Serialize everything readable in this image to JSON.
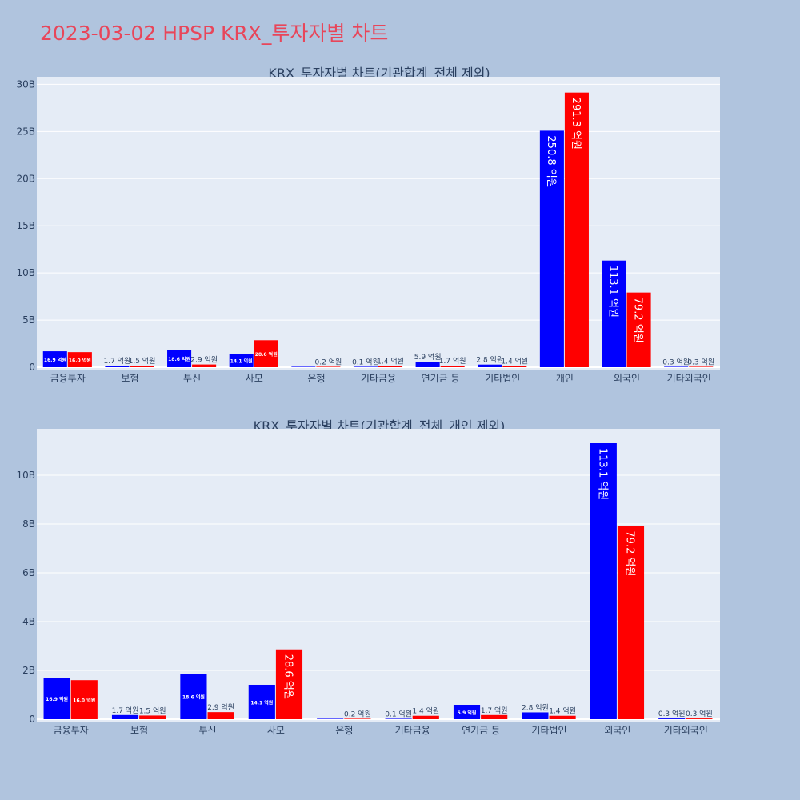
{
  "page_title": "2023-03-02 HPSP KRX_투자자별 차트",
  "colors": {
    "buy": "#0000ff",
    "sell": "#ff0000",
    "plot_bg": "#e5ecf6",
    "page_bg": "#b0c4de",
    "title": "#e8465a"
  },
  "chart_data": [
    {
      "type": "bar",
      "title": "KRX_투자자별 차트(기관합계_전체 제외)",
      "categories": [
        "금융투자",
        "보험",
        "투신",
        "사모",
        "은행",
        "기타금융",
        "연기금 등",
        "기타법인",
        "개인",
        "외국인",
        "기타외국인"
      ],
      "series": [
        {
          "values": [
            1.69,
            0.17,
            1.86,
            1.41,
            0.0,
            0.01,
            0.59,
            0.28,
            25.08,
            11.31,
            0.03
          ],
          "labels": [
            "16.9 억원",
            "1.7 억원",
            "18.6 억원",
            "14.1 억원",
            "",
            "0.1 억원",
            "5.9 억원",
            "2.8 억원",
            "250.8 억원",
            "113.1 억원",
            "0.3 억원"
          ]
        },
        {
          "values": [
            1.6,
            0.15,
            0.29,
            2.86,
            0.02,
            0.14,
            0.17,
            0.14,
            29.13,
            7.92,
            0.03
          ],
          "labels": [
            "16.0 억원",
            "1.5 억원",
            "2.9 억원",
            "28.6 억원",
            "0.2 억원",
            "1.4 억원",
            "1.7 억원",
            "1.4 억원",
            "291.3 억원",
            "79.2 억원",
            "0.3 억원"
          ]
        }
      ],
      "ylim": [
        0,
        30.8
      ],
      "yticks": [
        0,
        5,
        10,
        15,
        20,
        25,
        30
      ],
      "ytick_labels": [
        "0",
        "5B",
        "10B",
        "15B",
        "20B",
        "25B",
        "30B"
      ],
      "grid": true
    },
    {
      "type": "bar",
      "title": "KRX_투자자별 차트(기관합계_전체_개인 제외)",
      "categories": [
        "금융투자",
        "보험",
        "투신",
        "사모",
        "은행",
        "기타금융",
        "연기금 등",
        "기타법인",
        "외국인",
        "기타외국인"
      ],
      "series": [
        {
          "values": [
            1.69,
            0.17,
            1.86,
            1.41,
            0.0,
            0.01,
            0.59,
            0.28,
            11.31,
            0.03
          ],
          "labels": [
            "16.9 억원",
            "1.7 억원",
            "18.6 억원",
            "14.1 억원",
            "",
            "0.1 억원",
            "5.9 억원",
            "2.8 억원",
            "113.1 억원",
            "0.3 억원"
          ]
        },
        {
          "values": [
            1.6,
            0.15,
            0.29,
            2.86,
            0.02,
            0.14,
            0.17,
            0.14,
            7.92,
            0.03
          ],
          "labels": [
            "16.0 억원",
            "1.5 억원",
            "2.9 억원",
            "28.6 억원",
            "0.2 억원",
            "1.4 억원",
            "1.7 억원",
            "1.4 억원",
            "79.2 억원",
            "0.3 억원"
          ]
        }
      ],
      "ylim": [
        0,
        11.9
      ],
      "yticks": [
        0,
        2,
        4,
        6,
        8,
        10
      ],
      "ytick_labels": [
        "0",
        "2B",
        "4B",
        "6B",
        "8B",
        "10B"
      ],
      "grid": true
    }
  ]
}
